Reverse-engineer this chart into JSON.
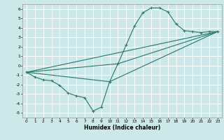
{
  "xlabel": "Humidex (Indice chaleur)",
  "xlim": [
    -0.5,
    23.5
  ],
  "ylim": [
    -5.5,
    6.5
  ],
  "xticks": [
    0,
    1,
    2,
    3,
    4,
    5,
    6,
    7,
    8,
    9,
    10,
    11,
    12,
    13,
    14,
    15,
    16,
    17,
    18,
    19,
    20,
    21,
    22,
    23
  ],
  "yticks": [
    -5,
    -4,
    -3,
    -2,
    -1,
    0,
    1,
    2,
    3,
    4,
    5,
    6
  ],
  "background_color": "#cce8e8",
  "grid_color": "#ffffff",
  "line_color": "#2e7d6e",
  "line1_x": [
    0,
    1,
    2,
    3,
    4,
    5,
    6,
    7,
    8,
    9,
    10,
    11,
    12,
    13,
    14,
    15,
    16,
    17,
    18,
    19,
    20,
    21,
    22,
    23
  ],
  "line1_y": [
    -0.7,
    -1.2,
    -1.5,
    -1.6,
    -2.1,
    -2.9,
    -3.2,
    -3.4,
    -4.8,
    -4.4,
    -1.7,
    0.2,
    2.2,
    4.2,
    5.6,
    6.1,
    6.1,
    5.7,
    4.4,
    3.7,
    3.6,
    3.5,
    3.6,
    3.6
  ],
  "line2_x": [
    0,
    10,
    23
  ],
  "line2_y": [
    -0.7,
    -1.7,
    3.6
  ],
  "line3_x": [
    0,
    23
  ],
  "line3_y": [
    -0.7,
    3.6
  ],
  "line4_x": [
    0,
    11,
    23
  ],
  "line4_y": [
    -0.7,
    0.2,
    3.6
  ]
}
